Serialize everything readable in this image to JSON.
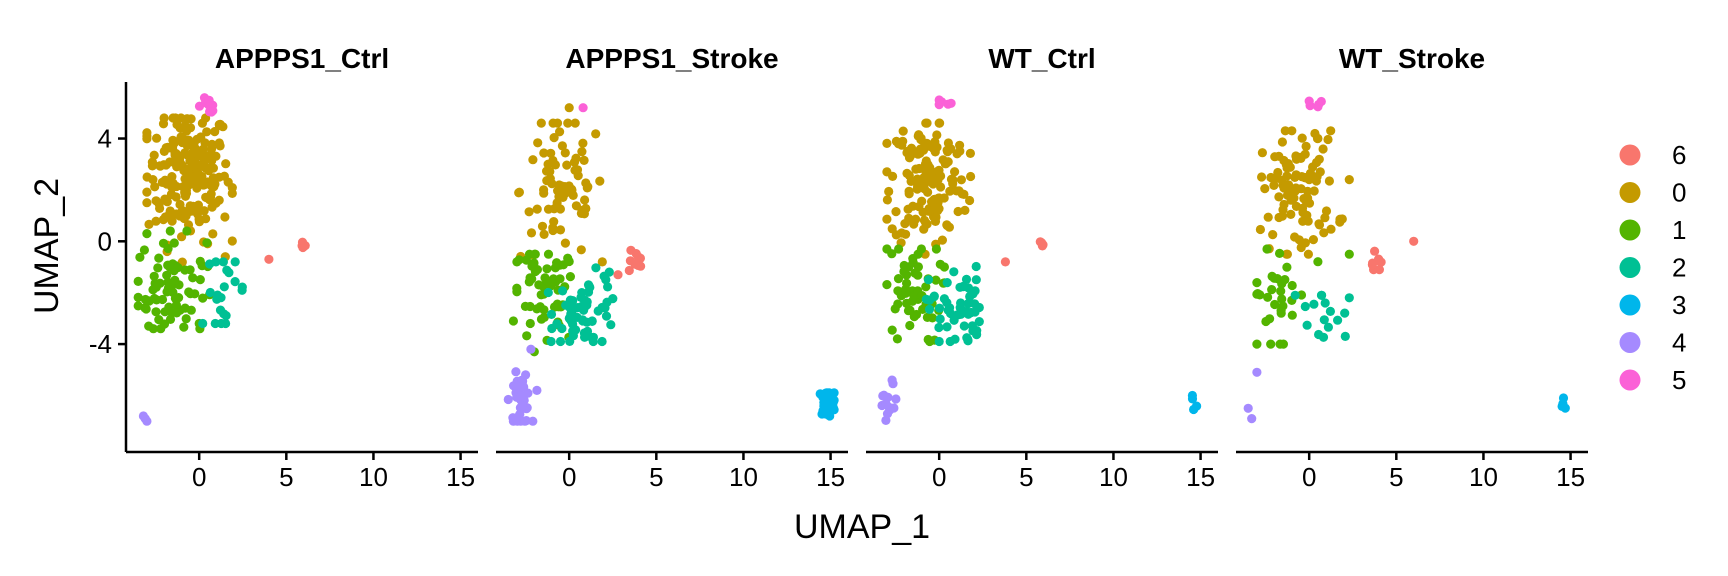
{
  "chart_data": {
    "type": "scatter",
    "xlabel": "UMAP_1",
    "ylabel": "UMAP_2",
    "xlim": [
      -4.2,
      16.0
    ],
    "ylim": [
      -8.2,
      6.2
    ],
    "x_ticks": [
      0,
      5,
      10,
      15
    ],
    "y_ticks": [
      4,
      0,
      -4
    ],
    "y_tick_labels": [
      "4",
      "0",
      "-4"
    ],
    "grid": false,
    "legend_position": "right",
    "clusters": [
      {
        "name": "6",
        "color": "#F8766D"
      },
      {
        "name": "0",
        "color": "#C49A00"
      },
      {
        "name": "1",
        "color": "#53B400"
      },
      {
        "name": "2",
        "color": "#00C094"
      },
      {
        "name": "3",
        "color": "#00B6EB"
      },
      {
        "name": "4",
        "color": "#A58AFF"
      },
      {
        "name": "5",
        "color": "#FB61D7"
      }
    ],
    "panels": [
      {
        "title": "APPPS1_Ctrl",
        "groups": [
          {
            "cluster": "0",
            "n": 200,
            "cx": -0.6,
            "cy": 2.6,
            "sx": 1.2,
            "sy": 1.3,
            "xr": [
              -3.0,
              1.9
            ],
            "yr": [
              -1.2,
              4.8
            ],
            "points": [
              [
                -0.8,
                4.5
              ],
              [
                1.5,
                -0.6
              ],
              [
                -2.0,
                3.5
              ]
            ]
          },
          {
            "cluster": "1",
            "n": 75,
            "cx": -1.6,
            "cy": -1.8,
            "sx": 1.0,
            "sy": 1.0,
            "xr": [
              -3.5,
              0.6
            ],
            "yr": [
              -3.4,
              0.4
            ],
            "points": [
              [
                -3.0,
                0.3
              ],
              [
                -2.9,
                -3.3
              ],
              [
                0.0,
                -3.2
              ]
            ]
          },
          {
            "cluster": "2",
            "n": 20,
            "cx": 1.5,
            "cy": -1.9,
            "sx": 0.6,
            "sy": 0.8,
            "xr": [
              0.6,
              2.6
            ],
            "yr": [
              -3.2,
              -0.8
            ],
            "points": [
              [
                0.2,
                -3.2
              ]
            ]
          },
          {
            "cluster": "5",
            "n": 12,
            "cx": 0.5,
            "cy": 5.3,
            "sx": 0.3,
            "sy": 0.15,
            "xr": [
              0.0,
              1.0
            ],
            "yr": [
              5.0,
              5.6
            ],
            "points": []
          },
          {
            "cluster": "6",
            "n": 4,
            "cx": 5.9,
            "cy": -0.15,
            "sx": 0.1,
            "sy": 0.05,
            "xr": [
              5.7,
              6.1
            ],
            "yr": [
              -0.3,
              0.0
            ],
            "points": [
              [
                4.0,
                -0.7
              ]
            ]
          },
          {
            "cluster": "4",
            "n": 0,
            "cx": 0,
            "cy": 0,
            "sx": 0,
            "sy": 0,
            "xr": [
              0,
              0
            ],
            "yr": [
              0,
              0
            ],
            "points": [
              [
                -3.2,
                -6.8
              ],
              [
                -3.1,
                -6.9
              ],
              [
                -3.0,
                -7.0
              ]
            ]
          }
        ]
      },
      {
        "title": "APPPS1_Stroke",
        "groups": [
          {
            "cluster": "0",
            "n": 75,
            "cx": -0.4,
            "cy": 2.0,
            "sx": 1.2,
            "sy": 1.4,
            "xr": [
              -2.9,
              1.9
            ],
            "yr": [
              -0.8,
              4.6
            ],
            "points": [
              [
                0.0,
                5.2
              ],
              [
                -1.6,
                4.6
              ]
            ]
          },
          {
            "cluster": "1",
            "n": 55,
            "cx": -1.5,
            "cy": -2.2,
            "sx": 1.0,
            "sy": 1.0,
            "xr": [
              -3.2,
              0.4
            ],
            "yr": [
              -4.3,
              -0.5
            ],
            "points": [
              [
                -3.0,
                -0.8
              ],
              [
                -2.0,
                -4.3
              ]
            ]
          },
          {
            "cluster": "2",
            "n": 60,
            "cx": 1.0,
            "cy": -2.7,
            "sx": 0.9,
            "sy": 0.7,
            "xr": [
              -1.2,
              2.5
            ],
            "yr": [
              -3.9,
              -1.0
            ],
            "points": [
              [
                2.3,
                -1.2
              ],
              [
                2.1,
                -1.5
              ]
            ]
          },
          {
            "cluster": "4",
            "n": 40,
            "cx": -2.8,
            "cy": -6.2,
            "sx": 0.3,
            "sy": 0.5,
            "xr": [
              -3.5,
              -1.8
            ],
            "yr": [
              -7.0,
              -4.1
            ],
            "points": [
              [
                -2.2,
                -4.2
              ],
              [
                -2.5,
                -5.2
              ]
            ]
          },
          {
            "cluster": "6",
            "n": 10,
            "cx": 3.7,
            "cy": -0.8,
            "sx": 0.3,
            "sy": 0.3,
            "xr": [
              3.0,
              4.1
            ],
            "yr": [
              -1.4,
              -0.3
            ],
            "points": [
              [
                2.8,
                -1.3
              ]
            ]
          },
          {
            "cluster": "3",
            "n": 40,
            "cx": 14.8,
            "cy": -6.3,
            "sx": 0.25,
            "sy": 0.25,
            "xr": [
              14.3,
              15.2
            ],
            "yr": [
              -6.8,
              -5.9
            ],
            "points": []
          },
          {
            "cluster": "5",
            "n": 1,
            "cx": 0.8,
            "cy": 5.2,
            "sx": 0.0,
            "sy": 0.0,
            "xr": [
              0.8,
              0.8
            ],
            "yr": [
              5.2,
              5.2
            ],
            "points": []
          }
        ]
      },
      {
        "title": "WT_Ctrl",
        "groups": [
          {
            "cluster": "0",
            "n": 150,
            "cx": -0.6,
            "cy": 2.4,
            "sx": 1.1,
            "sy": 1.3,
            "xr": [
              -3.0,
              1.8
            ],
            "yr": [
              -0.5,
              4.6
            ],
            "points": [
              [
                0.0,
                4.6
              ]
            ]
          },
          {
            "cluster": "1",
            "n": 55,
            "cx": -1.6,
            "cy": -2.0,
            "sx": 0.9,
            "sy": 1.0,
            "xr": [
              -3.0,
              0.3
            ],
            "yr": [
              -3.9,
              -0.3
            ],
            "points": [
              [
                -2.4,
                -3.8
              ]
            ]
          },
          {
            "cluster": "2",
            "n": 55,
            "cx": 1.0,
            "cy": -2.6,
            "sx": 0.8,
            "sy": 0.8,
            "xr": [
              -1.0,
              2.3
            ],
            "yr": [
              -3.9,
              -0.9
            ],
            "points": [
              [
                0.0,
                -3.9
              ]
            ]
          },
          {
            "cluster": "4",
            "n": 12,
            "cx": -2.9,
            "cy": -6.4,
            "sx": 0.3,
            "sy": 0.4,
            "xr": [
              -3.5,
              -2.2
            ],
            "yr": [
              -7.0,
              -5.4
            ],
            "points": [
              [
                -2.7,
                -5.4
              ]
            ]
          },
          {
            "cluster": "6",
            "n": 4,
            "cx": 5.9,
            "cy": -0.1,
            "sx": 0.1,
            "sy": 0.05,
            "xr": [
              5.7,
              6.1
            ],
            "yr": [
              -0.2,
              0.0
            ],
            "points": [
              [
                3.8,
                -0.8
              ]
            ]
          },
          {
            "cluster": "5",
            "n": 5,
            "cx": 0.4,
            "cy": 5.3,
            "sx": 0.25,
            "sy": 0.15,
            "xr": [
              0.0,
              0.9
            ],
            "yr": [
              5.0,
              5.5
            ],
            "points": []
          },
          {
            "cluster": "3",
            "n": 4,
            "cx": 14.6,
            "cy": -6.4,
            "sx": 0.1,
            "sy": 0.25,
            "xr": [
              14.4,
              14.8
            ],
            "yr": [
              -6.8,
              -6.0
            ],
            "points": []
          }
        ]
      },
      {
        "title": "WT_Stroke",
        "groups": [
          {
            "cluster": "0",
            "n": 100,
            "cx": -0.6,
            "cy": 2.0,
            "sx": 1.1,
            "sy": 1.2,
            "xr": [
              -2.8,
              1.9
            ],
            "yr": [
              -0.5,
              4.3
            ],
            "points": [
              [
                -1.0,
                4.3
              ],
              [
                2.3,
                2.4
              ]
            ]
          },
          {
            "cluster": "1",
            "n": 30,
            "cx": -1.8,
            "cy": -2.0,
            "sx": 0.9,
            "sy": 1.0,
            "xr": [
              -3.0,
              0.5
            ],
            "yr": [
              -4.0,
              -0.3
            ],
            "points": [
              [
                -3.0,
                -4.0
              ],
              [
                2.3,
                -0.5
              ]
            ]
          },
          {
            "cluster": "2",
            "n": 15,
            "cx": 0.5,
            "cy": -3.0,
            "sx": 0.9,
            "sy": 0.6,
            "xr": [
              -0.8,
              2.3
            ],
            "yr": [
              -3.9,
              -2.1
            ],
            "points": [
              [
                2.3,
                -2.2
              ]
            ]
          },
          {
            "cluster": "6",
            "n": 8,
            "cx": 3.8,
            "cy": -0.8,
            "sx": 0.2,
            "sy": 0.25,
            "xr": [
              3.4,
              4.2
            ],
            "yr": [
              -1.1,
              -0.3
            ],
            "points": [
              [
                6.0,
                0.0
              ]
            ]
          },
          {
            "cluster": "4",
            "n": 0,
            "cx": 0,
            "cy": 0,
            "sx": 0,
            "sy": 0,
            "xr": [
              0,
              0
            ],
            "yr": [
              0,
              0
            ],
            "points": [
              [
                -3.0,
                -5.1
              ],
              [
                -3.5,
                -6.5
              ],
              [
                -3.3,
                -6.9
              ]
            ]
          },
          {
            "cluster": "5",
            "n": 5,
            "cx": 0.4,
            "cy": 5.3,
            "sx": 0.25,
            "sy": 0.1,
            "xr": [
              0.0,
              0.8
            ],
            "yr": [
              5.1,
              5.5
            ],
            "points": []
          },
          {
            "cluster": "3",
            "n": 4,
            "cx": 14.6,
            "cy": -6.4,
            "sx": 0.15,
            "sy": 0.2,
            "xr": [
              14.4,
              14.8
            ],
            "yr": [
              -6.7,
              -6.0
            ],
            "points": []
          }
        ]
      }
    ]
  }
}
